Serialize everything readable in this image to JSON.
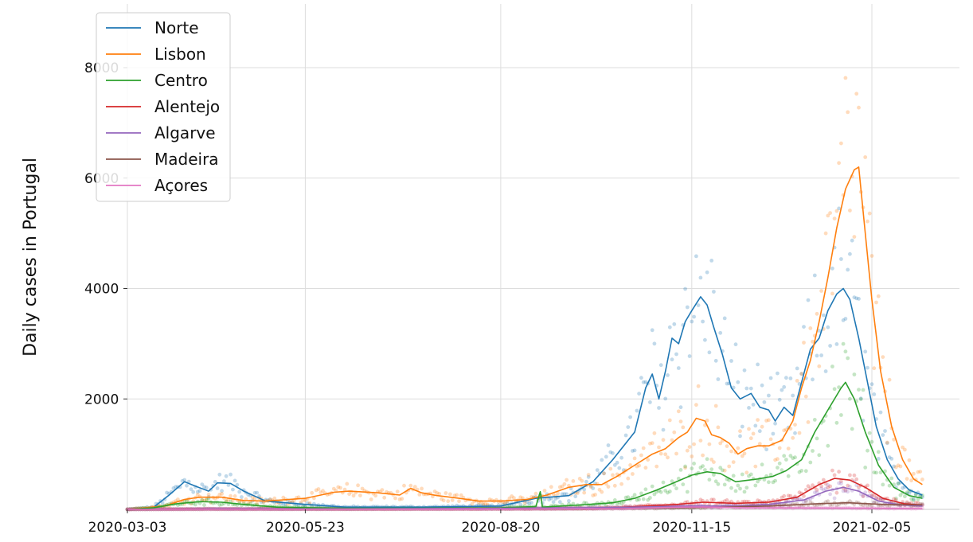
{
  "chart_data": {
    "type": "line",
    "title": "",
    "xlabel": "",
    "ylabel": "Daily cases in Portugal",
    "x_start": "2020-03-03",
    "x_end": "2021-02-28",
    "x_ticks": [
      {
        "date": "2020-03-03",
        "label": "2020-03-03"
      },
      {
        "date": "2020-05-23",
        "label": "2020-05-23"
      },
      {
        "date": "2020-08-20",
        "label": "2020-08-20"
      },
      {
        "date": "2020-11-15",
        "label": "2020-11-15"
      },
      {
        "date": "2021-02-05",
        "label": "2021-02-05"
      }
    ],
    "ylim": [
      0,
      9000
    ],
    "y_ticks": [
      {
        "value": 2000,
        "label": "2000"
      },
      {
        "value": 4000,
        "label": "4000"
      },
      {
        "value": 6000,
        "label": "6000"
      },
      {
        "value": 8000,
        "label": "8000"
      }
    ],
    "grid": true,
    "legend_position": "top-left",
    "markers": "scattered daily values (faint dots) with 7-day rolling average lines",
    "series": [
      {
        "name": "Norte",
        "color": "#1f77b4",
        "points": [
          [
            "2020-03-03",
            0
          ],
          [
            "2020-03-15",
            40
          ],
          [
            "2020-03-22",
            260
          ],
          [
            "2020-03-29",
            500
          ],
          [
            "2020-04-03",
            420
          ],
          [
            "2020-04-09",
            330
          ],
          [
            "2020-04-13",
            480
          ],
          [
            "2020-04-19",
            470
          ],
          [
            "2020-04-25",
            330
          ],
          [
            "2020-05-05",
            150
          ],
          [
            "2020-05-20",
            100
          ],
          [
            "2020-06-10",
            40
          ],
          [
            "2020-07-15",
            40
          ],
          [
            "2020-08-20",
            60
          ],
          [
            "2020-09-05",
            200
          ],
          [
            "2020-09-20",
            250
          ],
          [
            "2020-10-01",
            500
          ],
          [
            "2020-10-10",
            900
          ],
          [
            "2020-10-20",
            1400
          ],
          [
            "2020-10-25",
            2200
          ],
          [
            "2020-10-28",
            2450
          ],
          [
            "2020-10-31",
            2000
          ],
          [
            "2020-11-03",
            2500
          ],
          [
            "2020-11-06",
            3100
          ],
          [
            "2020-11-09",
            3000
          ],
          [
            "2020-11-12",
            3400
          ],
          [
            "2020-11-15",
            3600
          ],
          [
            "2020-11-19",
            3850
          ],
          [
            "2020-11-22",
            3700
          ],
          [
            "2020-11-25",
            3300
          ],
          [
            "2020-11-29",
            2800
          ],
          [
            "2020-12-03",
            2200
          ],
          [
            "2020-12-07",
            2000
          ],
          [
            "2020-12-12",
            2100
          ],
          [
            "2020-12-16",
            1850
          ],
          [
            "2020-12-20",
            1800
          ],
          [
            "2020-12-23",
            1600
          ],
          [
            "2020-12-27",
            1850
          ],
          [
            "2020-12-31",
            1700
          ],
          [
            "2021-01-04",
            2300
          ],
          [
            "2021-01-08",
            2900
          ],
          [
            "2021-01-12",
            3100
          ],
          [
            "2021-01-16",
            3600
          ],
          [
            "2021-01-20",
            3900
          ],
          [
            "2021-01-23",
            4000
          ],
          [
            "2021-01-26",
            3800
          ],
          [
            "2021-01-30",
            3100
          ],
          [
            "2021-02-03",
            2300
          ],
          [
            "2021-02-07",
            1500
          ],
          [
            "2021-02-12",
            900
          ],
          [
            "2021-02-17",
            550
          ],
          [
            "2021-02-22",
            350
          ],
          [
            "2021-02-28",
            260
          ]
        ]
      },
      {
        "name": "Lisbon",
        "color": "#ff7f0e",
        "points": [
          [
            "2020-03-03",
            0
          ],
          [
            "2020-03-20",
            60
          ],
          [
            "2020-03-29",
            180
          ],
          [
            "2020-04-05",
            220
          ],
          [
            "2020-04-15",
            220
          ],
          [
            "2020-04-25",
            160
          ],
          [
            "2020-05-05",
            150
          ],
          [
            "2020-05-23",
            200
          ],
          [
            "2020-06-05",
            310
          ],
          [
            "2020-06-12",
            330
          ],
          [
            "2020-06-25",
            300
          ],
          [
            "2020-07-05",
            260
          ],
          [
            "2020-07-10",
            380
          ],
          [
            "2020-07-15",
            300
          ],
          [
            "2020-07-22",
            250
          ],
          [
            "2020-08-01",
            200
          ],
          [
            "2020-08-10",
            150
          ],
          [
            "2020-08-20",
            150
          ],
          [
            "2020-09-01",
            180
          ],
          [
            "2020-09-10",
            260
          ],
          [
            "2020-09-20",
            400
          ],
          [
            "2020-09-28",
            450
          ],
          [
            "2020-10-05",
            450
          ],
          [
            "2020-10-12",
            600
          ],
          [
            "2020-10-20",
            800
          ],
          [
            "2020-10-28",
            1000
          ],
          [
            "2020-11-03",
            1100
          ],
          [
            "2020-11-09",
            1300
          ],
          [
            "2020-11-13",
            1400
          ],
          [
            "2020-11-17",
            1650
          ],
          [
            "2020-11-21",
            1600
          ],
          [
            "2020-11-24",
            1350
          ],
          [
            "2020-11-28",
            1300
          ],
          [
            "2020-12-02",
            1200
          ],
          [
            "2020-12-06",
            1000
          ],
          [
            "2020-12-10",
            1100
          ],
          [
            "2020-12-15",
            1150
          ],
          [
            "2020-12-20",
            1150
          ],
          [
            "2020-12-26",
            1250
          ],
          [
            "2020-12-31",
            1600
          ],
          [
            "2021-01-04",
            2200
          ],
          [
            "2021-01-08",
            2700
          ],
          [
            "2021-01-12",
            3400
          ],
          [
            "2021-01-16",
            4200
          ],
          [
            "2021-01-20",
            5100
          ],
          [
            "2021-01-24",
            5800
          ],
          [
            "2021-01-28",
            6150
          ],
          [
            "2021-01-30",
            6200
          ],
          [
            "2021-02-02",
            5000
          ],
          [
            "2021-02-05",
            3800
          ],
          [
            "2021-02-09",
            2500
          ],
          [
            "2021-02-14",
            1500
          ],
          [
            "2021-02-19",
            900
          ],
          [
            "2021-02-24",
            550
          ],
          [
            "2021-02-28",
            450
          ]
        ]
      },
      {
        "name": "Centro",
        "color": "#2ca02c",
        "points": [
          [
            "2020-03-03",
            0
          ],
          [
            "2020-03-15",
            30
          ],
          [
            "2020-03-25",
            100
          ],
          [
            "2020-04-05",
            140
          ],
          [
            "2020-04-15",
            130
          ],
          [
            "2020-04-25",
            90
          ],
          [
            "2020-05-10",
            40
          ],
          [
            "2020-06-10",
            20
          ],
          [
            "2020-07-15",
            20
          ],
          [
            "2020-08-20",
            30
          ],
          [
            "2020-09-05",
            50
          ],
          [
            "2020-09-07",
            320
          ],
          [
            "2020-09-08",
            40
          ],
          [
            "2020-09-25",
            80
          ],
          [
            "2020-10-10",
            120
          ],
          [
            "2020-10-20",
            200
          ],
          [
            "2020-10-30",
            350
          ],
          [
            "2020-11-08",
            500
          ],
          [
            "2020-11-15",
            620
          ],
          [
            "2020-11-22",
            680
          ],
          [
            "2020-11-28",
            650
          ],
          [
            "2020-12-05",
            500
          ],
          [
            "2020-12-15",
            550
          ],
          [
            "2020-12-22",
            600
          ],
          [
            "2020-12-28",
            700
          ],
          [
            "2021-01-04",
            900
          ],
          [
            "2021-01-10",
            1400
          ],
          [
            "2021-01-16",
            1800
          ],
          [
            "2021-01-22",
            2200
          ],
          [
            "2021-01-24",
            2300
          ],
          [
            "2021-01-28",
            2000
          ],
          [
            "2021-02-02",
            1400
          ],
          [
            "2021-02-08",
            800
          ],
          [
            "2021-02-15",
            400
          ],
          [
            "2021-02-22",
            250
          ],
          [
            "2021-02-28",
            200
          ]
        ]
      },
      {
        "name": "Alentejo",
        "color": "#d62728",
        "points": [
          [
            "2020-03-03",
            0
          ],
          [
            "2020-04-10",
            10
          ],
          [
            "2020-06-10",
            5
          ],
          [
            "2020-08-20",
            10
          ],
          [
            "2020-10-01",
            20
          ],
          [
            "2020-10-20",
            50
          ],
          [
            "2020-11-08",
            90
          ],
          [
            "2020-11-20",
            130
          ],
          [
            "2020-12-05",
            110
          ],
          [
            "2020-12-20",
            130
          ],
          [
            "2021-01-02",
            220
          ],
          [
            "2021-01-12",
            450
          ],
          [
            "2021-01-19",
            560
          ],
          [
            "2021-01-26",
            530
          ],
          [
            "2021-02-02",
            400
          ],
          [
            "2021-02-10",
            200
          ],
          [
            "2021-02-20",
            100
          ],
          [
            "2021-02-28",
            80
          ]
        ]
      },
      {
        "name": "Algarve",
        "color": "#9467bd",
        "points": [
          [
            "2020-03-03",
            0
          ],
          [
            "2020-04-10",
            10
          ],
          [
            "2020-06-10",
            10
          ],
          [
            "2020-08-20",
            20
          ],
          [
            "2020-10-01",
            30
          ],
          [
            "2020-10-20",
            40
          ],
          [
            "2020-11-15",
            60
          ],
          [
            "2020-12-05",
            60
          ],
          [
            "2020-12-20",
            90
          ],
          [
            "2021-01-05",
            170
          ],
          [
            "2021-01-15",
            330
          ],
          [
            "2021-01-23",
            400
          ],
          [
            "2021-01-30",
            330
          ],
          [
            "2021-02-08",
            150
          ],
          [
            "2021-02-18",
            80
          ],
          [
            "2021-02-28",
            60
          ]
        ]
      },
      {
        "name": "Madeira",
        "color": "#8c564b",
        "points": [
          [
            "2020-03-03",
            0
          ],
          [
            "2020-06-10",
            3
          ],
          [
            "2020-08-20",
            5
          ],
          [
            "2020-10-01",
            10
          ],
          [
            "2020-11-15",
            30
          ],
          [
            "2020-12-20",
            60
          ],
          [
            "2021-01-10",
            100
          ],
          [
            "2021-01-25",
            120
          ],
          [
            "2021-02-10",
            90
          ],
          [
            "2021-02-28",
            80
          ]
        ]
      },
      {
        "name": "Açores",
        "color": "#e377c2",
        "points": [
          [
            "2020-03-03",
            0
          ],
          [
            "2020-06-10",
            2
          ],
          [
            "2020-08-20",
            5
          ],
          [
            "2020-10-15",
            15
          ],
          [
            "2020-11-10",
            40
          ],
          [
            "2020-11-20",
            45
          ],
          [
            "2020-12-10",
            30
          ],
          [
            "2021-01-10",
            25
          ],
          [
            "2021-02-05",
            20
          ],
          [
            "2021-02-28",
            15
          ]
        ]
      }
    ]
  }
}
